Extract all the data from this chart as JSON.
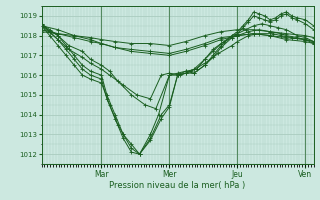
{
  "bg_color": "#cce8e0",
  "grid_color": "#aaccbf",
  "line_color": "#1a5e20",
  "marker_color": "#1a5e20",
  "xlabel": "Pression niveau de la mer( hPa )",
  "ylim": [
    1011.5,
    1019.5
  ],
  "yticks": [
    1012,
    1013,
    1014,
    1015,
    1016,
    1017,
    1018,
    1019
  ],
  "day_labels": [
    "Mar",
    "Mer",
    "Jeu",
    "Ven"
  ],
  "day_positions": [
    0.22,
    0.47,
    0.72,
    0.97
  ],
  "series": [
    {
      "x": [
        0,
        0.03,
        0.06,
        0.09,
        0.12,
        0.15,
        0.18,
        0.22,
        0.24,
        0.27,
        0.3,
        0.33,
        0.36,
        0.4,
        0.44,
        0.47,
        0.5,
        0.53,
        0.56,
        0.6,
        0.63,
        0.66,
        0.7,
        0.72,
        0.74,
        0.76,
        0.78,
        0.8,
        0.82,
        0.84,
        0.86,
        0.88,
        0.9,
        0.92,
        0.94,
        0.97,
        1.0
      ],
      "y": [
        1018.6,
        1018.3,
        1018.0,
        1017.5,
        1017.0,
        1016.5,
        1016.2,
        1016.0,
        1015.0,
        1014.0,
        1013.0,
        1012.3,
        1012.0,
        1012.8,
        1014.0,
        1014.5,
        1016.0,
        1016.2,
        1016.1,
        1016.5,
        1017.0,
        1017.5,
        1018.0,
        1018.2,
        1018.5,
        1018.8,
        1019.2,
        1019.1,
        1019.0,
        1018.8,
        1018.9,
        1019.1,
        1019.2,
        1019.0,
        1018.9,
        1018.8,
        1018.5
      ]
    },
    {
      "x": [
        0,
        0.03,
        0.06,
        0.09,
        0.12,
        0.15,
        0.18,
        0.22,
        0.24,
        0.27,
        0.3,
        0.33,
        0.36,
        0.4,
        0.44,
        0.47,
        0.5,
        0.53,
        0.56,
        0.6,
        0.63,
        0.66,
        0.7,
        0.72,
        0.74,
        0.76,
        0.78,
        0.8,
        0.82,
        0.84,
        0.86,
        0.88,
        0.9,
        0.92,
        0.94,
        0.97,
        1.0
      ],
      "y": [
        1018.6,
        1018.2,
        1017.8,
        1017.3,
        1016.8,
        1016.3,
        1016.0,
        1015.8,
        1014.8,
        1013.8,
        1012.8,
        1012.1,
        1012.0,
        1012.7,
        1013.8,
        1014.4,
        1016.0,
        1016.1,
        1016.1,
        1016.5,
        1016.9,
        1017.4,
        1017.9,
        1018.1,
        1018.4,
        1018.7,
        1019.0,
        1018.9,
        1018.8,
        1018.7,
        1018.8,
        1019.0,
        1019.1,
        1018.9,
        1018.8,
        1018.6,
        1018.3
      ]
    },
    {
      "x": [
        0,
        0.06,
        0.12,
        0.18,
        0.22,
        0.27,
        0.33,
        0.4,
        0.47,
        0.53,
        0.6,
        0.66,
        0.72,
        0.78,
        0.84,
        0.9,
        0.97,
        1.0
      ],
      "y": [
        1018.5,
        1018.3,
        1018.0,
        1017.8,
        1017.6,
        1017.4,
        1017.2,
        1017.1,
        1017.0,
        1017.2,
        1017.5,
        1017.8,
        1018.0,
        1018.1,
        1018.0,
        1017.9,
        1017.8,
        1017.7
      ]
    },
    {
      "x": [
        0,
        0.06,
        0.12,
        0.18,
        0.22,
        0.27,
        0.33,
        0.4,
        0.47,
        0.53,
        0.6,
        0.66,
        0.72,
        0.78,
        0.84,
        0.9,
        0.97,
        1.0
      ],
      "y": [
        1018.3,
        1018.1,
        1017.9,
        1017.7,
        1017.6,
        1017.4,
        1017.3,
        1017.2,
        1017.1,
        1017.3,
        1017.6,
        1017.9,
        1018.0,
        1018.1,
        1018.0,
        1017.8,
        1017.7,
        1017.6
      ]
    },
    {
      "x": [
        0,
        0.06,
        0.1,
        0.15,
        0.18,
        0.22,
        0.25,
        0.28,
        0.33,
        0.38,
        0.42,
        0.47,
        0.5,
        0.53,
        0.57,
        0.6,
        0.63,
        0.66,
        0.7,
        0.72,
        0.76,
        0.8,
        0.84,
        0.88,
        0.9,
        0.94,
        0.97,
        1.0
      ],
      "y": [
        1018.5,
        1018.0,
        1017.5,
        1017.2,
        1016.8,
        1016.5,
        1016.2,
        1015.7,
        1015.0,
        1014.5,
        1014.3,
        1016.0,
        1016.1,
        1016.2,
        1016.3,
        1016.8,
        1017.2,
        1017.6,
        1017.9,
        1018.0,
        1018.2,
        1018.3,
        1018.2,
        1018.1,
        1018.0,
        1017.9,
        1017.8,
        1017.7
      ]
    },
    {
      "x": [
        0,
        0.06,
        0.1,
        0.15,
        0.18,
        0.22,
        0.25,
        0.3,
        0.35,
        0.4,
        0.44,
        0.47,
        0.51,
        0.55,
        0.6,
        0.65,
        0.7,
        0.72,
        0.76,
        0.8,
        0.85,
        0.88,
        0.92,
        0.97,
        1.0
      ],
      "y": [
        1018.5,
        1017.8,
        1017.3,
        1016.9,
        1016.6,
        1016.3,
        1016.0,
        1015.5,
        1015.0,
        1014.8,
        1016.0,
        1016.1,
        1016.0,
        1016.2,
        1016.6,
        1017.1,
        1017.5,
        1017.7,
        1018.0,
        1018.1,
        1018.1,
        1018.0,
        1017.9,
        1017.8,
        1017.6
      ]
    },
    {
      "x": [
        0,
        0.03,
        0.06,
        0.09,
        0.12,
        0.15,
        0.18,
        0.22,
        0.25,
        0.28,
        0.3,
        0.33,
        0.36,
        0.4,
        0.43,
        0.47,
        0.5,
        0.53,
        0.56,
        0.6,
        0.63,
        0.67,
        0.7,
        0.72,
        0.75,
        0.78,
        0.81,
        0.84,
        0.87,
        0.9,
        0.94,
        0.97,
        1.0
      ],
      "y": [
        1018.5,
        1018.0,
        1017.5,
        1017.0,
        1016.5,
        1016.0,
        1015.8,
        1015.6,
        1014.5,
        1013.5,
        1013.0,
        1012.5,
        1012.0,
        1013.0,
        1014.0,
        1016.0,
        1016.0,
        1016.1,
        1016.3,
        1016.8,
        1017.3,
        1017.7,
        1018.0,
        1018.1,
        1018.3,
        1018.5,
        1018.6,
        1018.5,
        1018.4,
        1018.3,
        1018.0,
        1017.9,
        1017.7
      ]
    },
    {
      "x": [
        0,
        0.06,
        0.12,
        0.18,
        0.22,
        0.27,
        0.33,
        0.4,
        0.47,
        0.53,
        0.6,
        0.66,
        0.72,
        0.78,
        0.84,
        0.9,
        0.97,
        1.0
      ],
      "y": [
        1018.2,
        1018.1,
        1018.0,
        1017.9,
        1017.8,
        1017.7,
        1017.6,
        1017.6,
        1017.5,
        1017.7,
        1018.0,
        1018.2,
        1018.3,
        1018.3,
        1018.2,
        1018.1,
        1018.0,
        1017.9
      ]
    }
  ]
}
